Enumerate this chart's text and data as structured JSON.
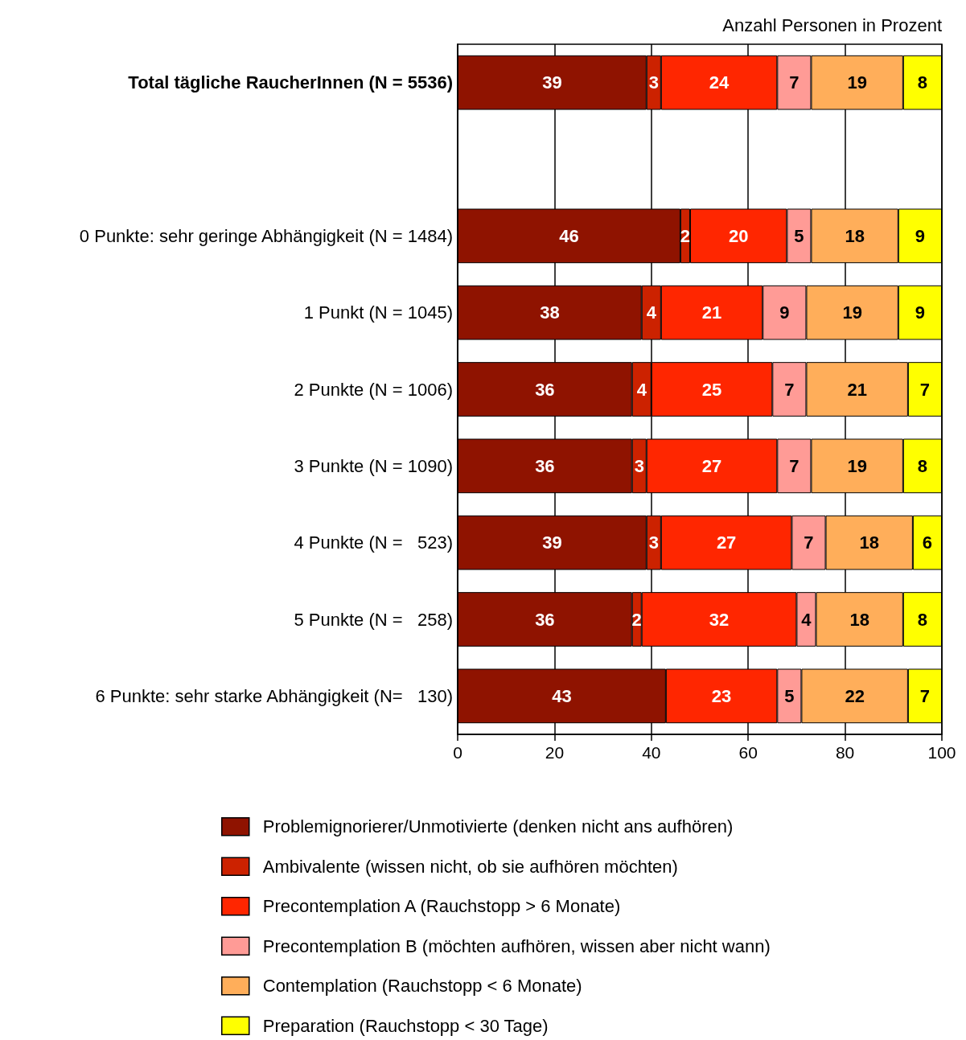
{
  "chart_data": {
    "type": "bar",
    "orientation": "horizontal",
    "stacked": true,
    "xlabel": "Anzahl Personen in Prozent",
    "categories": [
      "Total tägliche RaucherInnen (N = 5536)",
      null,
      "0 Punkte: sehr geringe Abhängigkeit (N = 1484)",
      "1 Punkt (N = 1045)",
      "2 Punkte (N = 1006)",
      "3 Punkte (N = 1090)",
      "4 Punkte (N =   523)",
      "5 Punkte (N =   258)",
      "6 Punkte: sehr starke Abhängigkeit (N=   130)"
    ],
    "series": [
      {
        "name": "Problemignorierer/Unmotivierte (denken nicht ans aufhören)",
        "color": "#8f1300",
        "values": [
          39,
          null,
          46,
          38,
          36,
          36,
          39,
          36,
          43
        ]
      },
      {
        "name": "Ambivalente (wissen nicht, ob sie aufhören möchten)",
        "color": "#cc2200",
        "values": [
          3,
          null,
          2,
          4,
          4,
          3,
          3,
          2,
          null
        ]
      },
      {
        "name": "Precontemplation A (Rauchstopp > 6 Monate)",
        "color": "#ff2600",
        "values": [
          24,
          null,
          20,
          21,
          25,
          27,
          27,
          32,
          23
        ]
      },
      {
        "name": "Precontemplation B (möchten aufhören, wissen aber nicht wann)",
        "color": "#ff9b96",
        "values": [
          7,
          null,
          5,
          9,
          7,
          7,
          7,
          4,
          5
        ]
      },
      {
        "name": "Contemplation (Rauchstopp < 6 Monate)",
        "color": "#ffae5a",
        "values": [
          19,
          null,
          18,
          19,
          21,
          19,
          18,
          18,
          22
        ]
      },
      {
        "name": "Preparation (Rauchstopp < 30 Tage)",
        "color": "#ffff00",
        "values": [
          8,
          null,
          9,
          9,
          7,
          8,
          6,
          8,
          7
        ]
      }
    ],
    "xlim": [
      0,
      100
    ],
    "xticks": [
      0,
      20,
      40,
      60,
      80,
      100
    ],
    "grid": "x",
    "legend": "bottom",
    "data_labels": true
  }
}
